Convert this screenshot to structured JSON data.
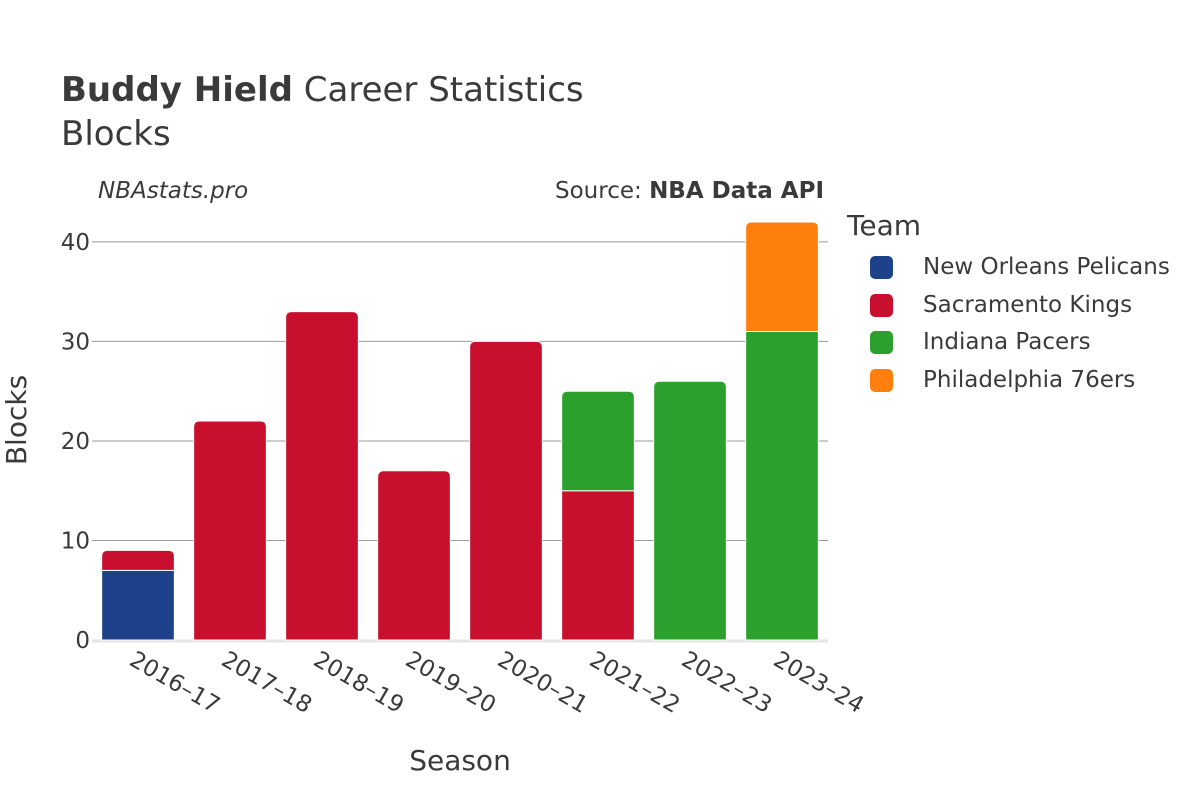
{
  "header": {
    "title_bold": "Buddy Hield",
    "title_rest": " Career Statistics",
    "subtitle": "Blocks",
    "credit": "NBAstats.pro",
    "source_prefix": "Source: ",
    "source_name": "NBA Data API"
  },
  "legend": {
    "title": "Team",
    "items": [
      {
        "label": "New Orleans Pelicans",
        "color": "#1d428a"
      },
      {
        "label": "Sacramento Kings",
        "color": "#c8102e"
      },
      {
        "label": "Indiana Pacers",
        "color": "#2ca02c"
      },
      {
        "label": "Philadelphia 76ers",
        "color": "#ff7f0e"
      }
    ]
  },
  "chart_data": {
    "type": "bar",
    "stacked": true,
    "categories": [
      "2016–17",
      "2017–18",
      "2018–19",
      "2019–20",
      "2020–21",
      "2021–22",
      "2022–23",
      "2023–24"
    ],
    "series": [
      {
        "name": "New Orleans Pelicans",
        "color": "#1d428a",
        "values": [
          7,
          0,
          0,
          0,
          0,
          0,
          0,
          0
        ]
      },
      {
        "name": "Sacramento Kings",
        "color": "#c8102e",
        "values": [
          2,
          22,
          33,
          17,
          30,
          15,
          0,
          0
        ]
      },
      {
        "name": "Indiana Pacers",
        "color": "#2ca02c",
        "values": [
          0,
          0,
          0,
          0,
          0,
          10,
          26,
          31
        ]
      },
      {
        "name": "Philadelphia 76ers",
        "color": "#ff7f0e",
        "values": [
          0,
          0,
          0,
          0,
          0,
          0,
          0,
          11
        ]
      }
    ],
    "xlabel": "Season",
    "ylabel": "Blocks",
    "yticks": [
      0,
      10,
      20,
      30,
      40
    ],
    "ylim": [
      0,
      42
    ],
    "grid": true,
    "legend_position": "right"
  }
}
